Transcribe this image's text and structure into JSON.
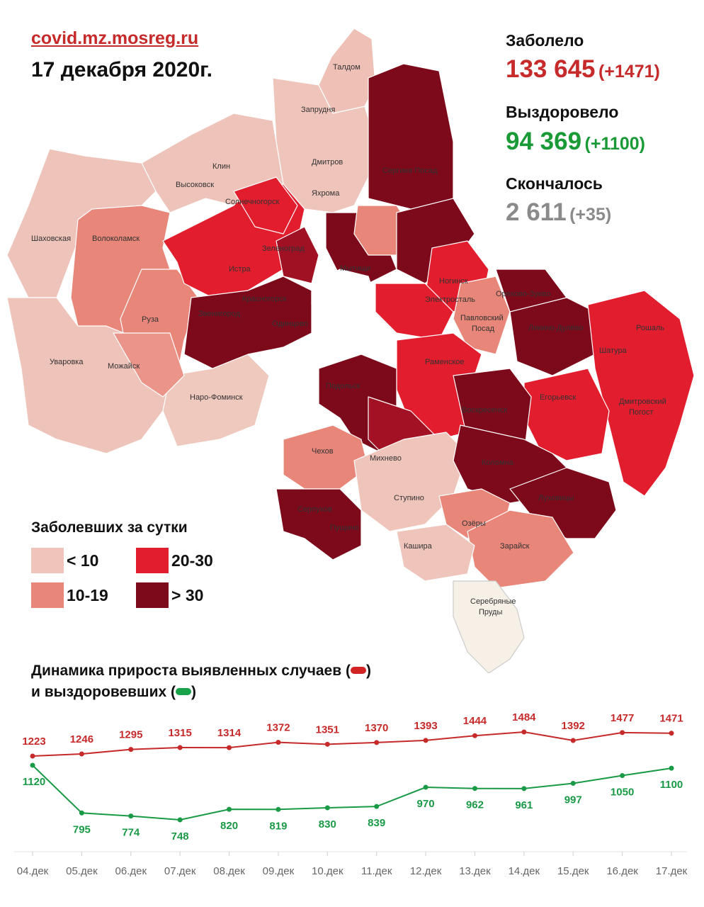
{
  "header": {
    "site": "covid.mz.mosreg.ru",
    "date": "17 декабря 2020г."
  },
  "stats": {
    "infected": {
      "label": "Заболело",
      "value": "133 645",
      "delta": "(+1471)",
      "color": "#c62a2a"
    },
    "recovered": {
      "label": "Выздоровело",
      "value": "94 369",
      "delta": "(+1100)",
      "color": "#1a9a36"
    },
    "deceased": {
      "label": "Скончалось",
      "value": "2 611",
      "delta": "(+35)",
      "color": "#8a8a8a"
    }
  },
  "legend": {
    "title": "Заболевших за сутки",
    "items": [
      {
        "label": "< 10",
        "color": "#f0c4bb"
      },
      {
        "label": "10-19",
        "color": "#e8867a"
      },
      {
        "label": "20-30",
        "color": "#e11d2e"
      },
      {
        "label": "> 30",
        "color": "#7d0a1a"
      }
    ]
  },
  "map": {
    "towns": [
      "Талдом",
      "Запрудня",
      "Клин",
      "Высоковск",
      "Дмитров",
      "Яхрома",
      "Солнечногорск",
      "Сергиев Посад",
      "Шаховская",
      "Волоколамск",
      "Зеленоград",
      "Истра",
      "Мытищи",
      "Ногинск",
      "Красногорск",
      "Электросталь",
      "Орехово-Зуево",
      "Звенигород",
      "Одинцово",
      "Павловский Посад",
      "Руза",
      "Ликино-Дулёво",
      "Рошаль",
      "Раменское",
      "Шатура",
      "Уваровка",
      "Можайск",
      "Подольск",
      "Егорьевск",
      "Наро-Фоминск",
      "Воскресенск",
      "Дмитровский Погост",
      "Чехов",
      "Михнево",
      "Коломна",
      "Серпухов",
      "Луховицы",
      "Ступино",
      "Озёры",
      "Пущино",
      "Зарайск",
      "Кашира",
      "Серебряные Пруды"
    ]
  },
  "chart_title": {
    "line1": "Динамика прироста выявленных случаев (",
    "line1_end": ")",
    "line2": "и выздоровевших (",
    "line2_end": ")"
  },
  "chart_data": {
    "type": "line",
    "categories": [
      "04.дек",
      "05.дек",
      "06.дек",
      "07.дек",
      "08.дек",
      "09.дек",
      "10.дек",
      "11.дек",
      "12.дек",
      "13.дек",
      "14.дек",
      "15.дек",
      "16.дек",
      "17.дек"
    ],
    "series": [
      {
        "values": [
          1223,
          1246,
          1295,
          1315,
          1314,
          1372,
          1351,
          1370,
          1393,
          1444,
          1484,
          1392,
          1477,
          1471
        ],
        "color": "#c62a2a"
      },
      {
        "values": [
          1120,
          795,
          774,
          748,
          820,
          819,
          830,
          839,
          970,
          962,
          961,
          997,
          1050,
          1100
        ],
        "color": "#1a9a46"
      }
    ],
    "grid": false,
    "legend": "inline-title"
  }
}
